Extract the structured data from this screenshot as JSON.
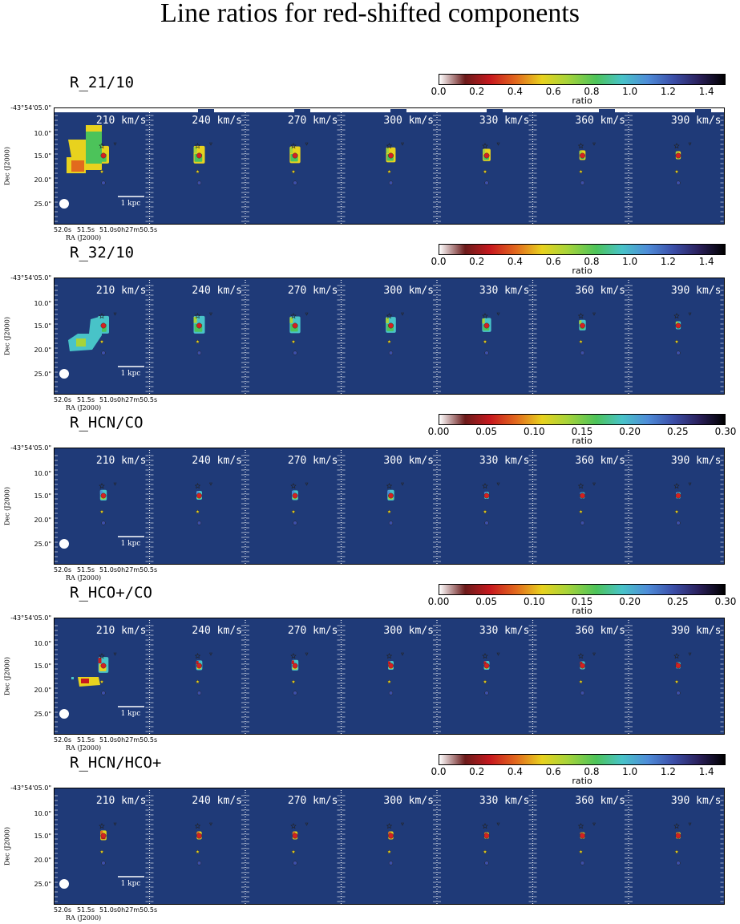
{
  "figure_title": "Line ratios for red-shifted components",
  "panel_labels": [
    "210 km/s",
    "240 km/s",
    "270 km/s",
    "300 km/s",
    "330 km/s",
    "360 km/s",
    "390 km/s"
  ],
  "axes": {
    "dec_title": "Dec (J2000)",
    "ra_title": "RA (J2000)",
    "dec_ticks": [
      "-43°54'05.0\"",
      "10.0\"",
      "15.0\"",
      "20.0\"",
      "25.0\""
    ],
    "ra_ticks": [
      "52.0s",
      "51.5s",
      "51.0s",
      "0h27m50.5s"
    ],
    "scalebar_label": "1 kpc"
  },
  "colors": {
    "background": "#1f3a78",
    "colormap": [
      "#ffffff",
      "#6b1a1a",
      "#c8191e",
      "#e26a1d",
      "#e8d21e",
      "#a6d43a",
      "#4cc35a",
      "#48c3c8",
      "#4e8cd8",
      "#3b4ea8",
      "#2a1f5a",
      "#000000"
    ]
  },
  "sections": [
    {
      "title": "R_21/10",
      "cbar_label": "ratio",
      "cbar_ticks": [
        "0.0",
        "0.2",
        "0.4",
        "0.6",
        "0.8",
        "1.0",
        "1.2",
        "1.4"
      ],
      "cbar_max": 1.5
    },
    {
      "title": "R_32/10",
      "cbar_label": "ratio",
      "cbar_ticks": [
        "0.0",
        "0.2",
        "0.4",
        "0.6",
        "0.8",
        "1.0",
        "1.2",
        "1.4"
      ],
      "cbar_max": 1.5
    },
    {
      "title": "R_HCN/CO",
      "cbar_label": "ratio",
      "cbar_ticks": [
        "0.00",
        "0.05",
        "0.10",
        "0.15",
        "0.20",
        "0.25",
        "0.30"
      ],
      "cbar_max": 0.3
    },
    {
      "title": "R_HCO+/CO",
      "cbar_label": "ratio",
      "cbar_ticks": [
        "0.00",
        "0.05",
        "0.10",
        "0.15",
        "0.20",
        "0.25",
        "0.30"
      ],
      "cbar_max": 0.3
    },
    {
      "title": "R_HCN/HCO+",
      "cbar_label": "ratio",
      "cbar_ticks": [
        "0.0",
        "0.2",
        "0.4",
        "0.6",
        "0.8",
        "1.0",
        "1.2",
        "1.4"
      ],
      "cbar_max": 1.5
    }
  ]
}
